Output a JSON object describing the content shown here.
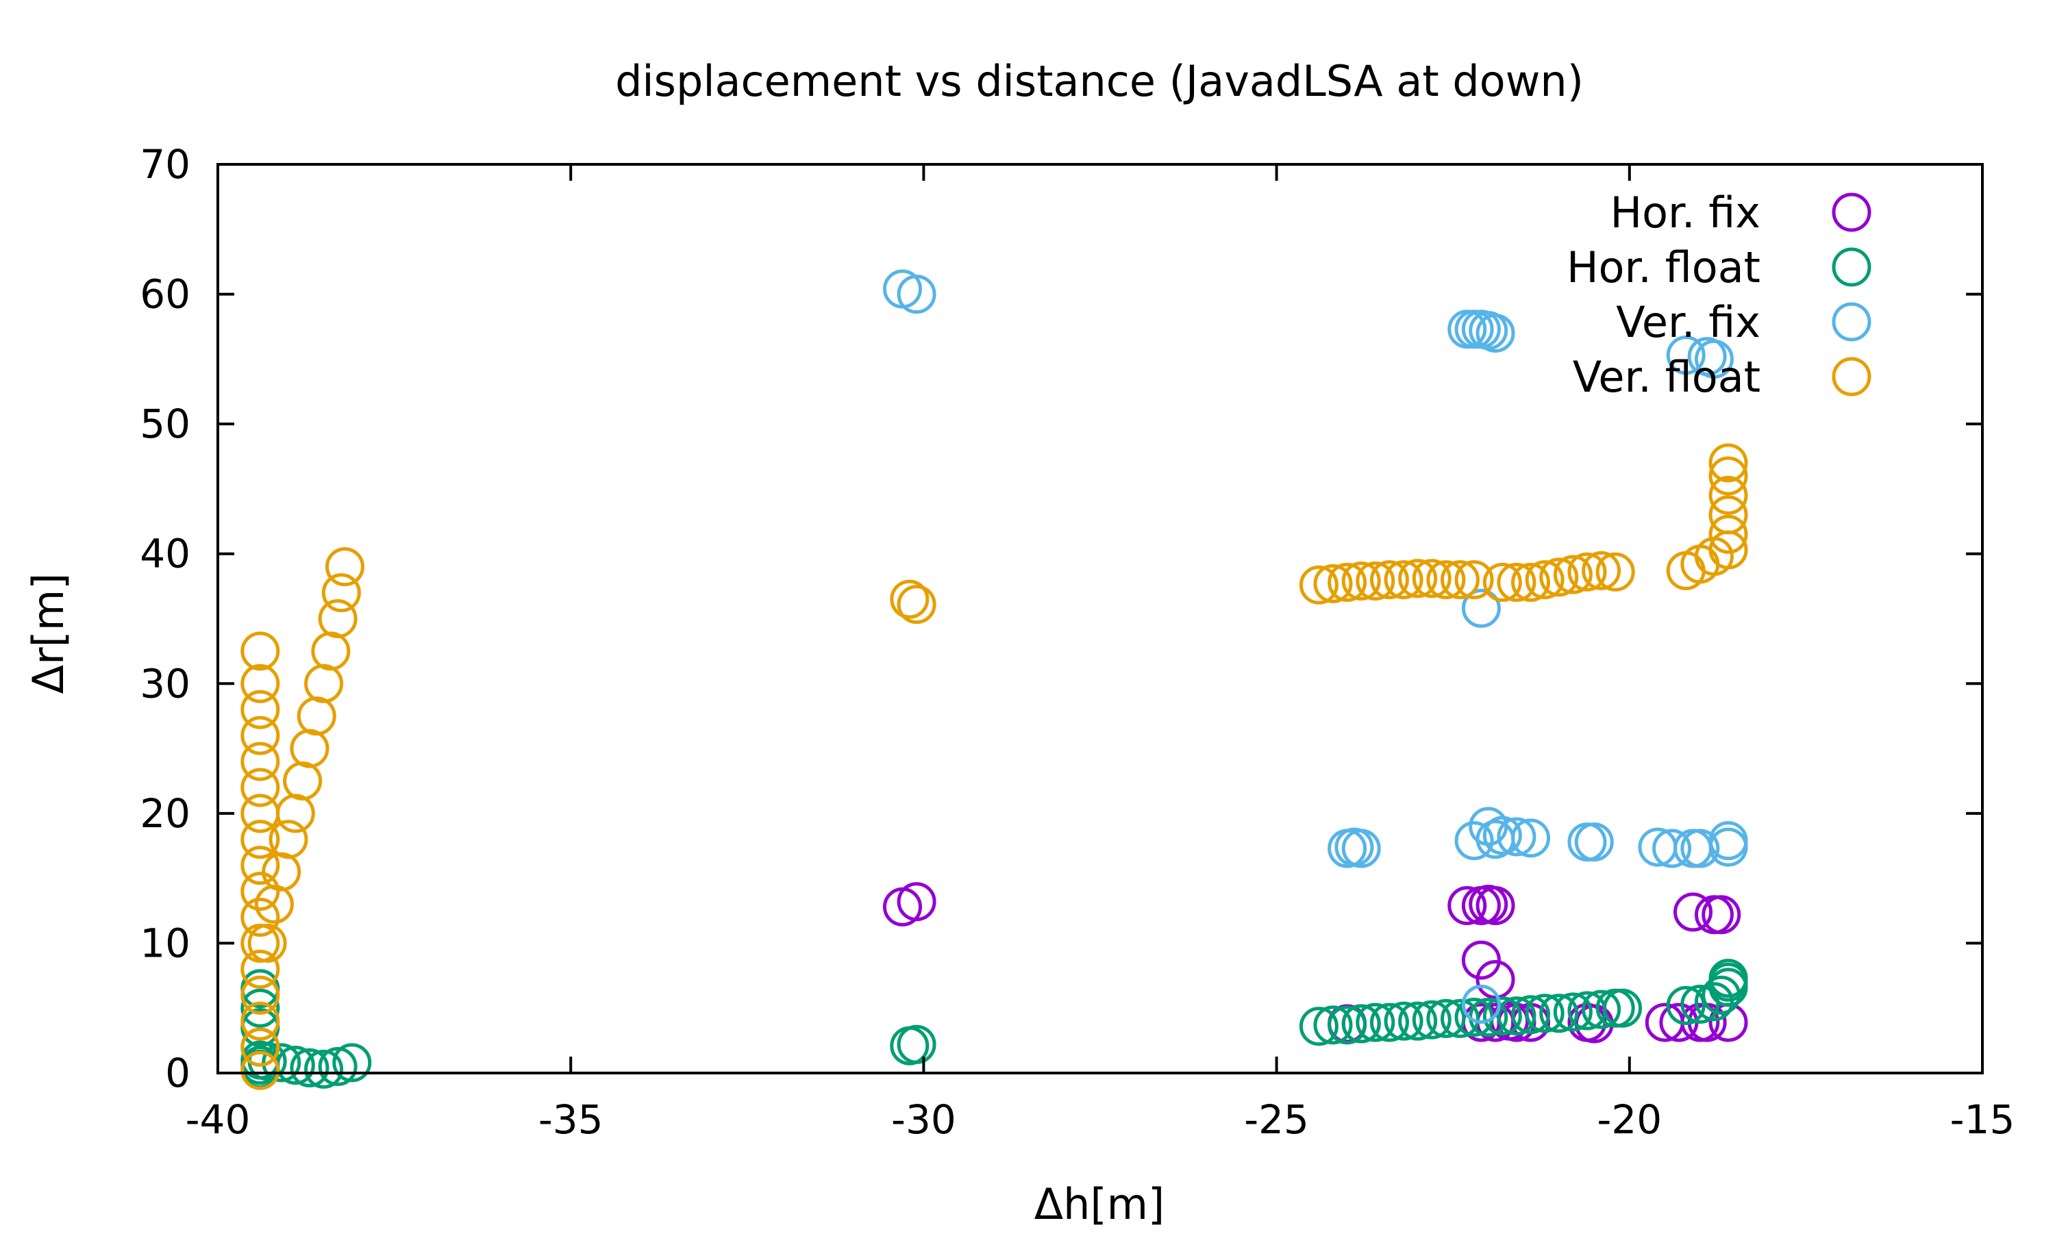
{
  "chart_data": {
    "type": "scatter",
    "title": "displacement vs distance (JavadLSA at down)",
    "xlabel": "Δh[m]",
    "ylabel": "Δr[m]",
    "xlim": [
      -40,
      -15
    ],
    "ylim": [
      0,
      70
    ],
    "xticks": [
      -40,
      -35,
      -30,
      -25,
      -20,
      -15
    ],
    "yticks": [
      0,
      10,
      20,
      30,
      40,
      50,
      60,
      70
    ],
    "xtick_labels": [
      "-40",
      "-35",
      "-30",
      "-25",
      "-20",
      "-15"
    ],
    "ytick_labels": [
      "0",
      "10",
      "20",
      "30",
      "40",
      "50",
      "60",
      "70"
    ],
    "grid": false,
    "legend_position": "top-right",
    "series": [
      {
        "name": "Hor. fix",
        "color": "#9400d3",
        "marker": "open-circle",
        "points": [
          [
            -30.3,
            12.8
          ],
          [
            -30.1,
            13.2
          ],
          [
            -22.3,
            12.9
          ],
          [
            -22.1,
            12.9
          ],
          [
            -22.0,
            13.0
          ],
          [
            -21.9,
            12.9
          ],
          [
            -22.1,
            8.7
          ],
          [
            -21.9,
            7.2
          ],
          [
            -22.1,
            3.9
          ],
          [
            -21.9,
            3.9
          ],
          [
            -21.7,
            4.0
          ],
          [
            -21.6,
            3.9
          ],
          [
            -21.4,
            3.9
          ],
          [
            -20.6,
            3.9
          ],
          [
            -20.5,
            3.8
          ],
          [
            -19.5,
            3.9
          ],
          [
            -19.3,
            3.9
          ],
          [
            -19.0,
            3.9
          ],
          [
            -18.9,
            3.9
          ],
          [
            -18.6,
            3.9
          ],
          [
            -19.1,
            12.4
          ],
          [
            -18.8,
            12.2
          ],
          [
            -18.7,
            12.2
          ],
          [
            -24.0,
            3.8
          ],
          [
            -23.8,
            3.8
          ]
        ]
      },
      {
        "name": "Hor. float",
        "color": "#009e73",
        "marker": "open-circle",
        "points": [
          [
            -39.4,
            0.3
          ],
          [
            -39.4,
            0.6
          ],
          [
            -39.4,
            1.0
          ],
          [
            -39.4,
            2.0
          ],
          [
            -39.4,
            3.5
          ],
          [
            -39.4,
            5.0
          ],
          [
            -39.4,
            6.5
          ],
          [
            -39.3,
            0.9
          ],
          [
            -39.1,
            0.8
          ],
          [
            -38.9,
            0.6
          ],
          [
            -38.7,
            0.4
          ],
          [
            -38.5,
            0.3
          ],
          [
            -38.3,
            0.5
          ],
          [
            -38.1,
            0.8
          ],
          [
            -30.2,
            2.1
          ],
          [
            -30.1,
            2.2
          ],
          [
            -24.4,
            3.6
          ],
          [
            -24.2,
            3.7
          ],
          [
            -24.0,
            3.7
          ],
          [
            -23.8,
            3.8
          ],
          [
            -23.6,
            3.9
          ],
          [
            -23.4,
            3.9
          ],
          [
            -23.2,
            4.0
          ],
          [
            -23.0,
            4.0
          ],
          [
            -22.8,
            4.1
          ],
          [
            -22.6,
            4.2
          ],
          [
            -22.4,
            4.2
          ],
          [
            -22.2,
            4.3
          ],
          [
            -22.0,
            4.3
          ],
          [
            -21.8,
            4.4
          ],
          [
            -21.6,
            4.4
          ],
          [
            -21.4,
            4.5
          ],
          [
            -21.2,
            4.6
          ],
          [
            -21.0,
            4.6
          ],
          [
            -20.8,
            4.7
          ],
          [
            -20.6,
            4.8
          ],
          [
            -20.4,
            4.9
          ],
          [
            -20.2,
            5.0
          ],
          [
            -20.1,
            5.0
          ],
          [
            -19.2,
            5.2
          ],
          [
            -19.0,
            5.3
          ],
          [
            -18.8,
            5.5
          ],
          [
            -18.7,
            6.0
          ],
          [
            -18.6,
            6.6
          ],
          [
            -18.6,
            7.0
          ],
          [
            -18.6,
            7.3
          ]
        ]
      },
      {
        "name": "Ver. fix",
        "color": "#56b4e9",
        "marker": "open-circle",
        "points": [
          [
            -30.3,
            60.4
          ],
          [
            -30.1,
            60.0
          ],
          [
            -22.3,
            57.3
          ],
          [
            -22.2,
            57.3
          ],
          [
            -22.1,
            57.3
          ],
          [
            -22.0,
            57.2
          ],
          [
            -21.9,
            57.0
          ],
          [
            -19.2,
            55.3
          ],
          [
            -18.9,
            55.2
          ],
          [
            -18.8,
            55.0
          ],
          [
            -24.0,
            17.3
          ],
          [
            -23.9,
            17.4
          ],
          [
            -23.8,
            17.3
          ],
          [
            -22.2,
            17.9
          ],
          [
            -22.0,
            19.0
          ],
          [
            -21.9,
            18.0
          ],
          [
            -21.8,
            18.3
          ],
          [
            -21.6,
            18.2
          ],
          [
            -21.4,
            18.1
          ],
          [
            -20.6,
            17.8
          ],
          [
            -20.5,
            17.8
          ],
          [
            -19.6,
            17.4
          ],
          [
            -19.4,
            17.3
          ],
          [
            -19.1,
            17.3
          ],
          [
            -19.0,
            17.3
          ],
          [
            -18.6,
            17.9
          ],
          [
            -18.6,
            17.4
          ],
          [
            -22.1,
            35.8
          ],
          [
            -22.1,
            5.3
          ]
        ]
      },
      {
        "name": "Ver. float",
        "color": "#e69f00",
        "marker": "open-circle",
        "points": [
          [
            -39.4,
            0.2
          ],
          [
            -39.4,
            2.0
          ],
          [
            -39.4,
            4.0
          ],
          [
            -39.4,
            6.0
          ],
          [
            -39.4,
            8.0
          ],
          [
            -39.4,
            10.0
          ],
          [
            -39.4,
            12.0
          ],
          [
            -39.4,
            14.0
          ],
          [
            -39.4,
            16.0
          ],
          [
            -39.4,
            18.0
          ],
          [
            -39.4,
            20.0
          ],
          [
            -39.4,
            22.0
          ],
          [
            -39.4,
            24.0
          ],
          [
            -39.4,
            26.0
          ],
          [
            -39.4,
            28.0
          ],
          [
            -39.4,
            30.0
          ],
          [
            -39.4,
            32.5
          ],
          [
            -39.3,
            10.0
          ],
          [
            -39.2,
            13.0
          ],
          [
            -39.1,
            15.5
          ],
          [
            -39.0,
            18.0
          ],
          [
            -38.9,
            20.0
          ],
          [
            -38.8,
            22.5
          ],
          [
            -38.7,
            25.0
          ],
          [
            -38.6,
            27.5
          ],
          [
            -38.5,
            30.0
          ],
          [
            -38.4,
            32.5
          ],
          [
            -38.3,
            35.0
          ],
          [
            -38.25,
            37.0
          ],
          [
            -38.2,
            39.0
          ],
          [
            -30.2,
            36.5
          ],
          [
            -30.1,
            36.1
          ],
          [
            -24.4,
            37.6
          ],
          [
            -24.2,
            37.7
          ],
          [
            -24.0,
            37.8
          ],
          [
            -23.8,
            37.9
          ],
          [
            -23.6,
            37.9
          ],
          [
            -23.4,
            38.0
          ],
          [
            -23.2,
            38.0
          ],
          [
            -23.0,
            38.1
          ],
          [
            -22.8,
            38.1
          ],
          [
            -22.6,
            38.0
          ],
          [
            -22.4,
            38.0
          ],
          [
            -22.2,
            38.0
          ],
          [
            -21.8,
            37.8
          ],
          [
            -21.6,
            37.8
          ],
          [
            -21.4,
            37.8
          ],
          [
            -21.2,
            38.0
          ],
          [
            -21.0,
            38.2
          ],
          [
            -20.8,
            38.4
          ],
          [
            -20.6,
            38.6
          ],
          [
            -20.4,
            38.7
          ],
          [
            -20.2,
            38.6
          ],
          [
            -19.2,
            38.7
          ],
          [
            -19.0,
            39.2
          ],
          [
            -18.8,
            39.8
          ],
          [
            -18.6,
            40.3
          ],
          [
            -18.6,
            41.5
          ],
          [
            -18.6,
            43.0
          ],
          [
            -18.6,
            44.5
          ],
          [
            -18.6,
            46.0
          ],
          [
            -18.6,
            47.0
          ]
        ]
      }
    ]
  }
}
